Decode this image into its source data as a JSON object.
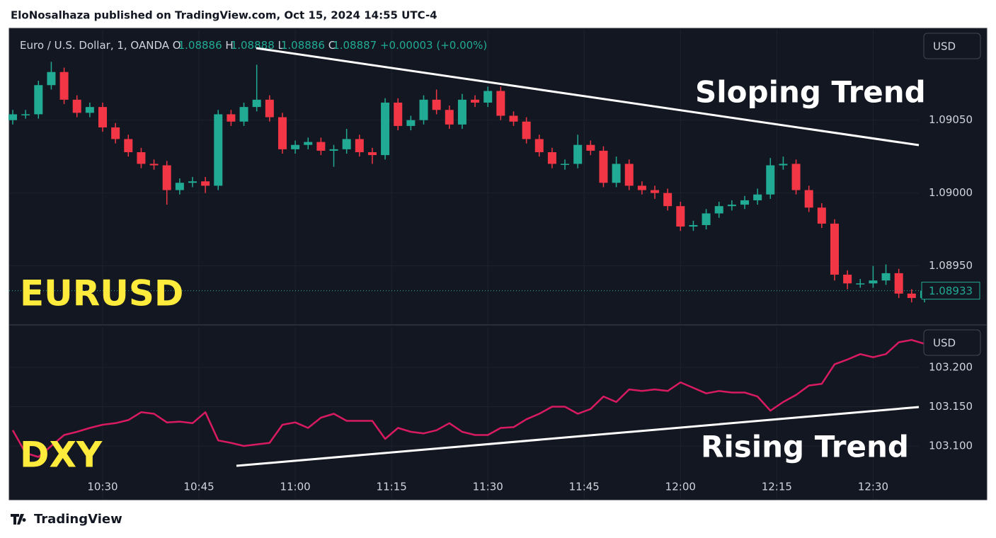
{
  "header": "EloNosalhaza published on TradingView.com, Oct 15, 2024 14:55 UTC-4",
  "footer": "TradingView",
  "chart_data": [
    {
      "type": "candlestick",
      "title": "EURUSD",
      "annotation": "Sloping Trend",
      "currency": "USD",
      "legend": {
        "symbol": "Euro / U.S. Dollar, 1, OANDA",
        "o_label": "O",
        "o": "1.08886",
        "h_label": "H",
        "h": "1.08888",
        "l_label": "L",
        "l": "1.08886",
        "c_label": "C",
        "c": "1.08887",
        "change": "+0.00003 (+0.00%)"
      },
      "last_price_label": "1.08933",
      "up_color": "#22ab94",
      "down_color": "#f23645",
      "grid": true,
      "ylim": [
        1.0891,
        1.09112
      ],
      "yticks": [
        {
          "value": 1.0895,
          "label": "1.08950"
        },
        {
          "value": 1.09,
          "label": "1.09000"
        },
        {
          "value": 1.0905,
          "label": "1.09050"
        }
      ],
      "x": [
        "10:16",
        "10:18",
        "10:20",
        "10:22",
        "10:24",
        "10:26",
        "10:28",
        "10:30",
        "10:32",
        "10:34",
        "10:36",
        "10:38",
        "10:40",
        "10:42",
        "10:44",
        "10:46",
        "10:48",
        "10:50",
        "10:52",
        "10:54",
        "10:56",
        "10:58",
        "11:00",
        "11:02",
        "11:04",
        "11:06",
        "11:08",
        "11:10",
        "11:12",
        "11:14",
        "11:16",
        "11:18",
        "11:20",
        "11:22",
        "11:24",
        "11:26",
        "11:28",
        "11:30",
        "11:32",
        "11:34",
        "11:36",
        "11:38",
        "11:40",
        "11:42",
        "11:44",
        "11:46",
        "11:48",
        "11:50",
        "11:52",
        "11:54",
        "11:56",
        "11:58",
        "12:00",
        "12:02",
        "12:04",
        "12:06",
        "12:08",
        "12:10",
        "12:12",
        "12:14",
        "12:16",
        "12:18",
        "12:20",
        "12:22",
        "12:24",
        "12:26",
        "12:28",
        "12:30",
        "12:32",
        "12:34",
        "12:36",
        "12:38"
      ],
      "open": [
        1.0905,
        1.09054,
        1.09054,
        1.09074,
        1.09083,
        1.09064,
        1.09055,
        1.09059,
        1.09045,
        1.09037,
        1.09028,
        1.0902,
        1.09019,
        1.09002,
        1.09007,
        1.09008,
        1.09005,
        1.09054,
        1.09049,
        1.09059,
        1.09064,
        1.09052,
        1.0903,
        1.09033,
        1.09035,
        1.09029,
        1.0903,
        1.09037,
        1.09028,
        1.09026,
        1.09062,
        1.09046,
        1.0905,
        1.09064,
        1.09057,
        1.09047,
        1.09064,
        1.09062,
        1.0907,
        1.09053,
        1.09049,
        1.09037,
        1.09028,
        1.0902,
        1.0902,
        1.09033,
        1.09029,
        1.09007,
        1.0902,
        1.09005,
        1.09002,
        1.09,
        1.08991,
        1.08977,
        1.08978,
        1.08986,
        1.08991,
        1.08992,
        1.08995,
        1.08999,
        1.09019,
        1.0902,
        1.09002,
        1.0899,
        1.08979,
        1.08944,
        1.08938,
        1.08938,
        1.0894,
        1.08945,
        1.08931,
        1.08928
      ],
      "high": [
        1.09057,
        1.09057,
        1.09077,
        1.0909,
        1.09086,
        1.09067,
        1.09062,
        1.09062,
        1.09048,
        1.0904,
        1.09031,
        1.09023,
        1.09022,
        1.0901,
        1.09011,
        1.09011,
        1.09057,
        1.09057,
        1.09062,
        1.09088,
        1.09067,
        1.09055,
        1.09036,
        1.09038,
        1.09038,
        1.09033,
        1.09044,
        1.0904,
        1.09031,
        1.09065,
        1.09065,
        1.09053,
        1.09067,
        1.09071,
        1.0906,
        1.09068,
        1.09067,
        1.09073,
        1.09073,
        1.09056,
        1.09052,
        1.0904,
        1.09031,
        1.09023,
        1.0904,
        1.09036,
        1.09032,
        1.09025,
        1.09023,
        1.09008,
        1.09005,
        1.09003,
        1.08994,
        1.08981,
        1.08989,
        1.08994,
        1.08995,
        1.08998,
        1.09003,
        1.09024,
        1.09025,
        1.09023,
        1.09005,
        1.08993,
        1.08982,
        1.08947,
        1.08941,
        1.0895,
        1.08951,
        1.08948,
        1.08934,
        1.08936
      ],
      "low": [
        1.09047,
        1.09051,
        1.09051,
        1.09071,
        1.09061,
        1.09052,
        1.09052,
        1.09042,
        1.09034,
        1.09025,
        1.09017,
        1.09016,
        1.08992,
        1.08999,
        1.09004,
        1.09,
        1.09002,
        1.09046,
        1.09046,
        1.09056,
        1.09049,
        1.09027,
        1.09027,
        1.0903,
        1.09026,
        1.09018,
        1.09027,
        1.09025,
        1.0902,
        1.09023,
        1.09043,
        1.09043,
        1.09047,
        1.09054,
        1.09044,
        1.09044,
        1.09059,
        1.09059,
        1.0905,
        1.09046,
        1.09034,
        1.09025,
        1.09017,
        1.09016,
        1.09017,
        1.09026,
        1.09004,
        1.09004,
        1.09002,
        1.08999,
        1.08996,
        1.08988,
        1.08974,
        1.08974,
        1.08975,
        1.08983,
        1.08988,
        1.08989,
        1.08992,
        1.08996,
        1.09016,
        1.08999,
        1.08987,
        1.08976,
        1.0894,
        1.08934,
        1.08935,
        1.08935,
        1.08937,
        1.08928,
        1.08925,
        1.08925
      ],
      "close": [
        1.09054,
        1.09054,
        1.09074,
        1.09083,
        1.09064,
        1.09055,
        1.09059,
        1.09045,
        1.09037,
        1.09028,
        1.0902,
        1.09019,
        1.09002,
        1.09007,
        1.09008,
        1.09005,
        1.09054,
        1.09049,
        1.09059,
        1.09064,
        1.09052,
        1.0903,
        1.09033,
        1.09035,
        1.09029,
        1.0903,
        1.09037,
        1.09028,
        1.09026,
        1.09062,
        1.09046,
        1.0905,
        1.09064,
        1.09057,
        1.09047,
        1.09064,
        1.09062,
        1.0907,
        1.09053,
        1.09049,
        1.09037,
        1.09028,
        1.0902,
        1.0902,
        1.09033,
        1.09029,
        1.09007,
        1.0902,
        1.09005,
        1.09002,
        1.09,
        1.08991,
        1.08977,
        1.08978,
        1.08986,
        1.08991,
        1.08992,
        1.08995,
        1.08999,
        1.09019,
        1.0902,
        1.09002,
        1.0899,
        1.08979,
        1.08944,
        1.08938,
        1.08938,
        1.0894,
        1.08945,
        1.08931,
        1.08928,
        1.08933
      ]
    },
    {
      "type": "line",
      "title": "DXY",
      "annotation": "Rising Trend",
      "currency": "USD",
      "grid": true,
      "ylim": [
        103.0315,
        103.2505
      ],
      "yticks": [
        {
          "value": 103.1,
          "label": "103.100"
        },
        {
          "value": 103.15,
          "label": "103.150"
        },
        {
          "value": 103.2,
          "label": "103.200"
        }
      ],
      "xticks": [
        "10:30",
        "10:45",
        "11:00",
        "11:15",
        "11:30",
        "11:45",
        "12:00",
        "12:15",
        "12:30"
      ],
      "x": [
        "10:16",
        "10:18",
        "10:20",
        "10:22",
        "10:24",
        "10:26",
        "10:28",
        "10:30",
        "10:32",
        "10:34",
        "10:36",
        "10:38",
        "10:40",
        "10:42",
        "10:44",
        "10:46",
        "10:48",
        "10:50",
        "10:52",
        "10:54",
        "10:56",
        "10:58",
        "11:00",
        "11:02",
        "11:04",
        "11:06",
        "11:08",
        "11:10",
        "11:12",
        "11:14",
        "11:16",
        "11:18",
        "11:20",
        "11:22",
        "11:24",
        "11:26",
        "11:28",
        "11:30",
        "11:32",
        "11:34",
        "11:36",
        "11:38",
        "11:40",
        "11:42",
        "11:44",
        "11:46",
        "11:48",
        "11:50",
        "11:52",
        "11:54",
        "11:56",
        "11:58",
        "12:00",
        "12:02",
        "12:04",
        "12:06",
        "12:08",
        "12:10",
        "12:12",
        "12:14",
        "12:16",
        "12:18",
        "12:20",
        "12:22",
        "12:24",
        "12:26",
        "12:28",
        "12:30",
        "12:32",
        "12:34",
        "12:36",
        "12:38"
      ],
      "series": [
        {
          "color": "#d81b60",
          "values": [
            103.12,
            103.091,
            103.086,
            103.1,
            103.114,
            103.118,
            103.123,
            103.127,
            103.129,
            103.133,
            103.143,
            103.141,
            103.13,
            103.131,
            103.129,
            103.143,
            103.107,
            103.104,
            103.1,
            103.102,
            103.104,
            103.127,
            103.13,
            103.123,
            103.136,
            103.141,
            103.132,
            103.132,
            103.132,
            103.109,
            103.123,
            103.118,
            103.116,
            103.12,
            103.129,
            103.118,
            103.114,
            103.114,
            103.123,
            103.124,
            103.134,
            103.141,
            103.15,
            103.15,
            103.141,
            103.147,
            103.163,
            103.156,
            103.172,
            103.17,
            103.172,
            103.17,
            103.181,
            103.174,
            103.167,
            103.17,
            103.168,
            103.168,
            103.163,
            103.145,
            103.156,
            103.165,
            103.177,
            103.179,
            103.204,
            103.21,
            103.217,
            103.213,
            103.217,
            103.232,
            103.235,
            103.23
          ]
        }
      ]
    }
  ]
}
